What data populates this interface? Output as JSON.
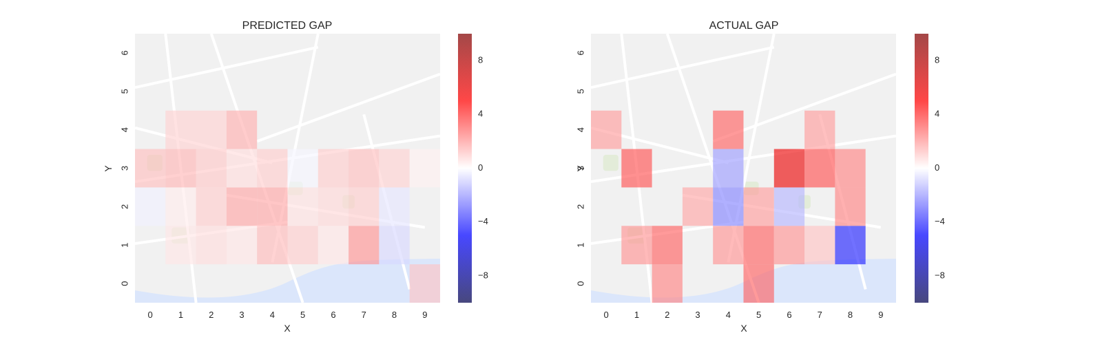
{
  "chart_data": [
    {
      "type": "heatmap",
      "title": "PREDICTED GAP",
      "xlabel": "X",
      "ylabel": "Y",
      "x_ticks": [
        "0",
        "1",
        "2",
        "3",
        "4",
        "5",
        "6",
        "7",
        "8",
        "9"
      ],
      "y_ticks": [
        "0",
        "1",
        "2",
        "3",
        "4",
        "5",
        "6"
      ],
      "background": "street map (Porto)",
      "grid": false,
      "values": [
        [
          0,
          0,
          0,
          0,
          0,
          0,
          0,
          0,
          0,
          1.2
        ],
        [
          0,
          0.5,
          0.7,
          0.5,
          1.4,
          1.0,
          0.5,
          2.2,
          -0.8,
          0
        ],
        [
          -0.3,
          0.4,
          1.0,
          1.8,
          1.8,
          0.6,
          0.8,
          1.0,
          -0.5,
          0
        ],
        [
          1.3,
          1.5,
          1.1,
          0.7,
          1.0,
          -0.2,
          1.0,
          1.3,
          0.9,
          0.3
        ],
        [
          0,
          0.9,
          0.9,
          1.6,
          0,
          0,
          0,
          0,
          0,
          0
        ],
        [
          0,
          0,
          0,
          0,
          0,
          0,
          0,
          0,
          0,
          0
        ],
        [
          0,
          0,
          0,
          0,
          0,
          0,
          0,
          0,
          0,
          0
        ]
      ],
      "colorbar": {
        "cmap": "seismic",
        "range": [
          -10,
          10
        ],
        "ticks": [
          -8,
          -4,
          0,
          4,
          8
        ],
        "tick_labels": [
          "−8",
          "−4",
          "0",
          "4",
          "8"
        ]
      }
    },
    {
      "type": "heatmap",
      "title": "ACTUAL GAP",
      "xlabel": "X",
      "ylabel": "Y",
      "x_ticks": [
        "0",
        "1",
        "2",
        "3",
        "4",
        "5",
        "6",
        "7",
        "8",
        "9"
      ],
      "y_ticks": [
        "0",
        "1",
        "2",
        "3",
        "4",
        "5",
        "6"
      ],
      "background": "street map (Porto)",
      "grid": false,
      "values": [
        [
          0,
          0,
          2.5,
          0,
          0,
          3.2,
          0,
          0,
          0,
          0
        ],
        [
          0,
          2.2,
          3.2,
          0,
          2.2,
          3.2,
          2.2,
          1.2,
          -4.5,
          0
        ],
        [
          0,
          0,
          0,
          1.8,
          -2.5,
          2.0,
          -1.5,
          0,
          2.5,
          0
        ],
        [
          0,
          3.5,
          0,
          0,
          -2.0,
          0,
          5.8,
          3.5,
          2.5,
          0
        ],
        [
          2.0,
          0,
          0,
          0,
          3.2,
          0,
          0,
          2.0,
          0,
          0
        ],
        [
          0,
          0,
          0,
          0,
          0,
          0,
          0,
          0,
          0,
          0
        ],
        [
          0,
          0,
          0,
          0,
          0,
          0,
          0,
          0,
          0,
          0
        ]
      ],
      "colorbar": {
        "cmap": "seismic",
        "range": [
          -10,
          10
        ],
        "ticks": [
          -8,
          -4,
          0,
          4,
          8
        ],
        "tick_labels": [
          "−8",
          "−4",
          "0",
          "4",
          "8"
        ]
      }
    }
  ]
}
